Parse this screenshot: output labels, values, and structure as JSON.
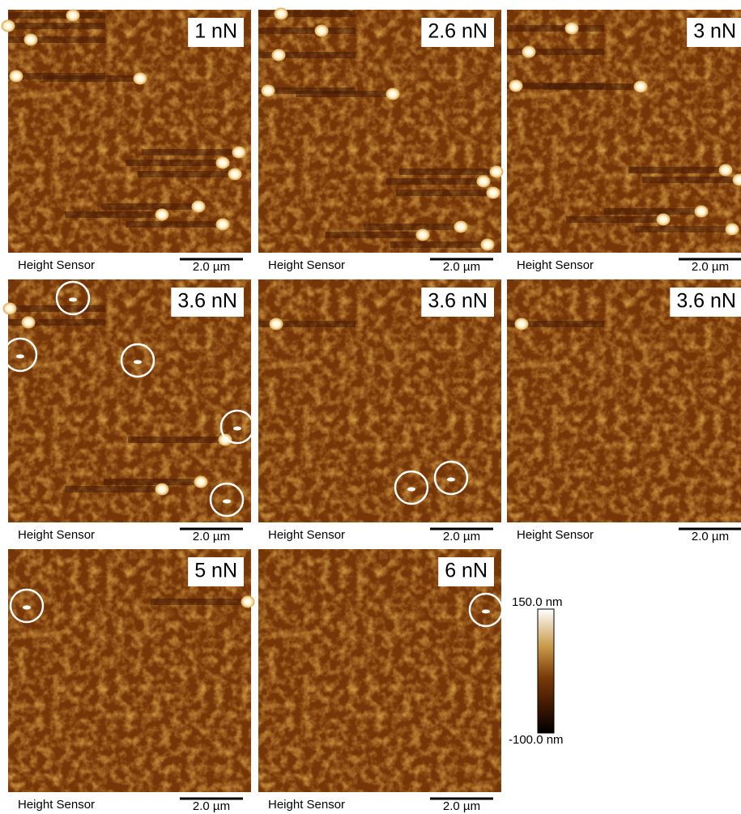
{
  "panels": [
    {
      "force": "1 nN",
      "caption": "Height Sensor",
      "scale": "2.0 µm"
    },
    {
      "force": "2.6 nN",
      "caption": "Height Sensor",
      "scale": "2.0 µm"
    },
    {
      "force": "3 nN",
      "caption": "Height Sensor",
      "scale": "2.0 µm"
    },
    {
      "force": "3.6 nN",
      "caption": "Height Sensor",
      "scale": "2.0 µm"
    },
    {
      "force": "3.6 nN",
      "caption": "Height Sensor",
      "scale": "2.0 µm"
    },
    {
      "force": "3.6 nN",
      "caption": "Height Sensor",
      "scale": "2.0 µm"
    },
    {
      "force": "5 nN",
      "caption": "Height Sensor",
      "scale": "2.0 µm"
    },
    {
      "force": "6 nN",
      "caption": "Height Sensor",
      "scale": "2.0 µm"
    }
  ],
  "colorbar": {
    "max": "150.0 nm",
    "min": "-100.0 nm"
  }
}
